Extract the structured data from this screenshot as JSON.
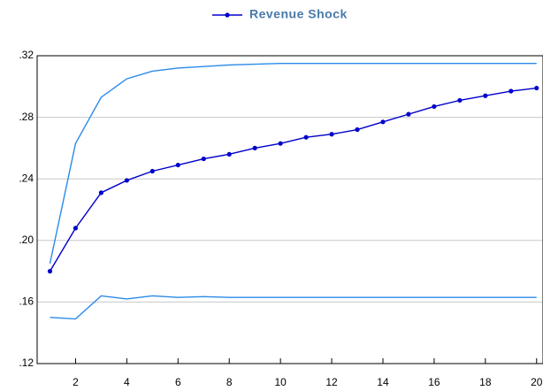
{
  "chart_data": {
    "type": "line",
    "x": [
      1,
      2,
      3,
      4,
      5,
      6,
      7,
      8,
      9,
      10,
      11,
      12,
      13,
      14,
      15,
      16,
      17,
      18,
      19,
      20
    ],
    "series": [
      {
        "name": "Revenue Shock",
        "color": "#0000cd",
        "markers": true,
        "values": [
          0.18,
          0.208,
          0.231,
          0.239,
          0.245,
          0.249,
          0.253,
          0.256,
          0.26,
          0.263,
          0.267,
          0.269,
          0.272,
          0.277,
          0.282,
          0.287,
          0.291,
          0.294,
          0.297,
          0.299
        ]
      },
      {
        "color": "#2a8be8",
        "markers": false,
        "values": [
          0.185,
          0.263,
          0.293,
          0.305,
          0.31,
          0.312,
          0.313,
          0.314,
          0.3145,
          0.315,
          0.315,
          0.315,
          0.315,
          0.315,
          0.315,
          0.315,
          0.315,
          0.315,
          0.315,
          0.315
        ]
      },
      {
        "color": "#2a8be8",
        "markers": false,
        "values": [
          0.15,
          0.149,
          0.164,
          0.162,
          0.164,
          0.163,
          0.1635,
          0.163,
          0.163,
          0.163,
          0.163,
          0.163,
          0.163,
          0.163,
          0.163,
          0.163,
          0.163,
          0.163,
          0.163,
          0.163
        ]
      }
    ],
    "xlim": [
      0.5,
      20.25
    ],
    "xticks": [
      2,
      4,
      6,
      8,
      10,
      12,
      14,
      16,
      18,
      20
    ],
    "ylim": [
      0.12,
      0.32
    ],
    "yticks": [
      {
        "value": 0.12,
        "label": ".12"
      },
      {
        "value": 0.16,
        "label": ".16"
      },
      {
        "value": 0.2,
        "label": ".20"
      },
      {
        "value": 0.24,
        "label": ".24"
      },
      {
        "value": 0.28,
        "label": ".28"
      },
      {
        "value": 0.32,
        "label": ".32"
      }
    ],
    "grid": true,
    "legend": "top"
  }
}
